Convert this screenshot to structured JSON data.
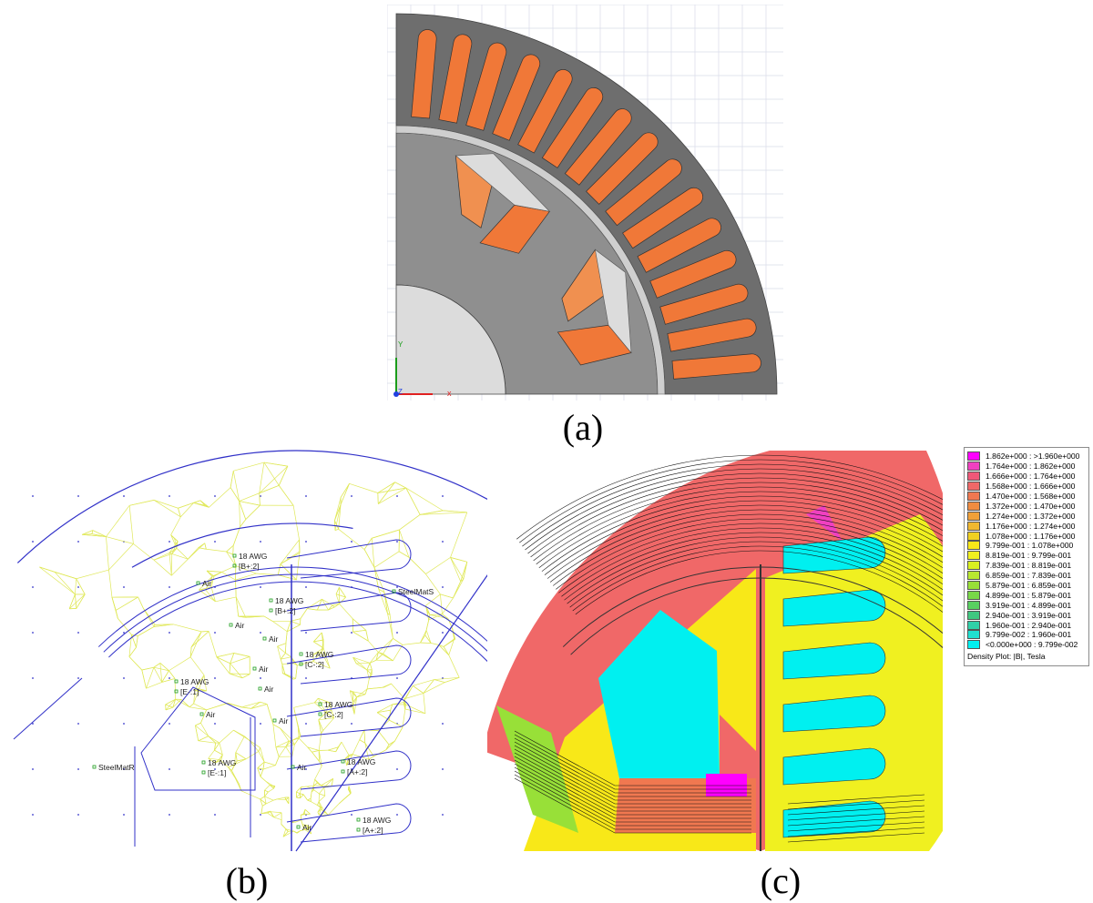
{
  "captions": {
    "a": "(a)",
    "b": "(b)",
    "c": "(c)"
  },
  "panel_a": {
    "axis_x_label": "x",
    "axis_y_label": "Y",
    "axis_z_label": "Z",
    "colors": {
      "stator": "#6e6e6e",
      "rotor": "#8f8f8f",
      "shaft": "#dcdcdc",
      "slot": "#f07838",
      "magnet": "#f09050",
      "air": "#dcdcdc",
      "grid": "#d8dce8"
    }
  },
  "panel_b": {
    "labels": [
      {
        "text": "18 AWG"
      },
      {
        "text": "[B+:2]"
      },
      {
        "text": "18 AWG"
      },
      {
        "text": "[B+:2]"
      },
      {
        "text": "18 AWG"
      },
      {
        "text": "[C-:2]"
      },
      {
        "text": "18 AWG"
      },
      {
        "text": "[C-:2]"
      },
      {
        "text": "18 AWG"
      },
      {
        "text": "[A+:2]"
      },
      {
        "text": "18 AWG"
      },
      {
        "text": "[A+:2]"
      },
      {
        "text": "18 AWG"
      },
      {
        "text": "[E-:1]"
      },
      {
        "text": "18 AWG"
      },
      {
        "text": "[E-:1]"
      },
      {
        "text": "SteelMatS"
      },
      {
        "text": "SteelMatR"
      },
      {
        "text": "Air"
      },
      {
        "text": "Air"
      },
      {
        "text": "Air"
      },
      {
        "text": "Air"
      },
      {
        "text": "Air"
      },
      {
        "text": "Air"
      },
      {
        "text": "Air"
      },
      {
        "text": "Air"
      },
      {
        "text": "Air"
      }
    ],
    "colors": {
      "mesh": "#e0e85a",
      "boundary": "#3030c8"
    }
  },
  "panel_c": {
    "legend_title": "Density Plot: |B|, Tesla",
    "legend": [
      {
        "label": "1.862e+000 : >1.960e+000",
        "color": "#ff00ff"
      },
      {
        "label": "1.764e+000 : 1.862e+000",
        "color": "#f040c0"
      },
      {
        "label": "1.666e+000 : 1.764e+000",
        "color": "#f05878"
      },
      {
        "label": "1.568e+000 : 1.666e+000",
        "color": "#f06868"
      },
      {
        "label": "1.470e+000 : 1.568e+000",
        "color": "#f07850"
      },
      {
        "label": "1.372e+000 : 1.470e+000",
        "color": "#f08c40"
      },
      {
        "label": "1.274e+000 : 1.372e+000",
        "color": "#f0a038"
      },
      {
        "label": "1.176e+000 : 1.274e+000",
        "color": "#f0b830"
      },
      {
        "label": "1.078e+000 : 1.176e+000",
        "color": "#f0d020"
      },
      {
        "label": "9.799e-001 : 1.078e+000",
        "color": "#f8e818"
      },
      {
        "label": "8.819e-001 : 9.799e-001",
        "color": "#f0f020"
      },
      {
        "label": "7.839e-001 : 8.819e-001",
        "color": "#d8f020"
      },
      {
        "label": "6.859e-001 : 7.839e-001",
        "color": "#b8e830"
      },
      {
        "label": "5.879e-001 : 6.859e-001",
        "color": "#98e038"
      },
      {
        "label": "4.899e-001 : 5.879e-001",
        "color": "#78d848"
      },
      {
        "label": "3.919e-001 : 4.899e-001",
        "color": "#58d060"
      },
      {
        "label": "2.940e-001 : 3.919e-001",
        "color": "#40c880"
      },
      {
        "label": "1.960e-001 : 2.940e-001",
        "color": "#30d0a8"
      },
      {
        "label": "9.799e-002 : 1.960e-001",
        "color": "#20e0d0"
      },
      {
        "label": "<0.000e+000 : 9.799e-002",
        "color": "#00f0f0"
      }
    ]
  }
}
